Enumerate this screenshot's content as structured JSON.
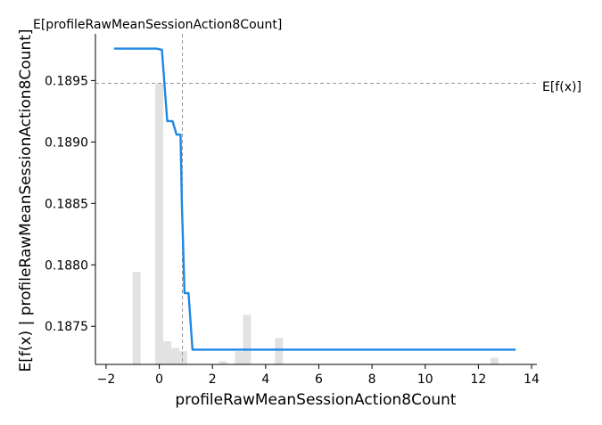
{
  "chart_data": {
    "type": "line",
    "title": "",
    "xlabel": "profileRawMeanSessionAction8Count",
    "ylabel": "E[f(x) | profileRawMeanSessionAction8Count]",
    "xlim": [
      -2.4,
      14.2
    ],
    "ylim": [
      0.18719,
      0.18988
    ],
    "x_ticks": [
      -2,
      0,
      2,
      4,
      6,
      8,
      10,
      12,
      14
    ],
    "x_tick_labels": [
      "−2",
      "0",
      "2",
      "4",
      "6",
      "8",
      "10",
      "12",
      "14"
    ],
    "y_ticks": [
      0.1875,
      0.188,
      0.1885,
      0.189,
      0.1895
    ],
    "y_tick_labels": [
      "0.1875",
      "0.1880",
      "0.1885",
      "0.1890",
      "0.1895"
    ],
    "grid": false,
    "series": [
      {
        "name": "",
        "color": "#1e88e5",
        "x": [
          -1.7,
          -0.1,
          0.1,
          0.3,
          0.5,
          0.65,
          0.8,
          0.85,
          0.95,
          1.0,
          1.1,
          1.25,
          1.3,
          13.4
        ],
        "y": [
          0.18976,
          0.18976,
          0.18975,
          0.18917,
          0.18917,
          0.18906,
          0.18906,
          0.1885,
          0.18777,
          0.18777,
          0.18777,
          0.18731,
          0.18731,
          0.18731
        ]
      }
    ],
    "histogram": {
      "color": "#e2e2e2",
      "bins": [
        {
          "x0": -1.0,
          "x1": -0.7,
          "value": 0.28
        },
        {
          "x0": -0.15,
          "x1": 0.15,
          "value": 0.85
        },
        {
          "x0": 0.15,
          "x1": 0.45,
          "value": 0.07
        },
        {
          "x0": 0.45,
          "x1": 0.75,
          "value": 0.05
        },
        {
          "x0": 0.75,
          "x1": 1.05,
          "value": 0.04
        },
        {
          "x0": 2.25,
          "x1": 2.55,
          "value": 0.01
        },
        {
          "x0": 2.85,
          "x1": 3.15,
          "value": 0.04
        },
        {
          "x0": 3.15,
          "x1": 3.45,
          "value": 0.15
        },
        {
          "x0": 4.35,
          "x1": 4.65,
          "value": 0.08
        },
        {
          "x0": 12.45,
          "x1": 12.75,
          "value": 0.02
        }
      ]
    },
    "reference_lines": {
      "horizontal": {
        "label": "E[f(x)]",
        "y": 0.189478
      },
      "vertical": {
        "label": "E[profileRawMeanSessionAction8Count]",
        "x": 0.87
      }
    }
  }
}
